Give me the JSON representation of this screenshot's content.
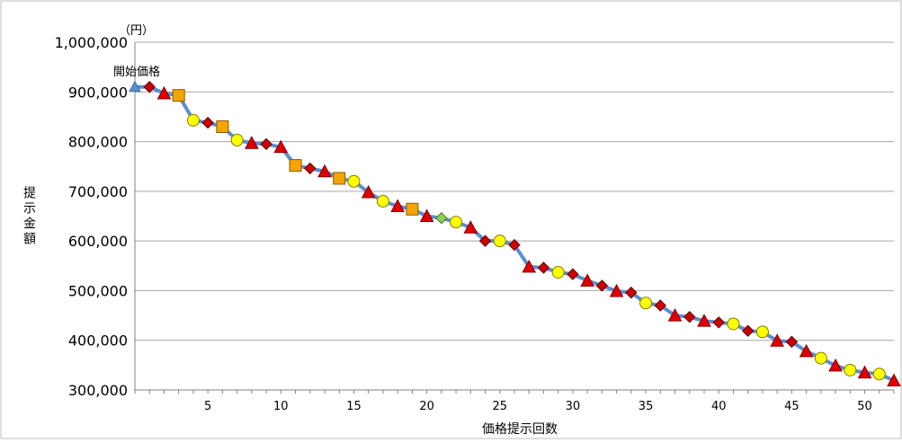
{
  "chart_data": {
    "type": "line",
    "title": "",
    "xlabel": "価格提示回数",
    "ylabel": "提示金額",
    "unit_label": "（円）",
    "start_label": "開始価格",
    "xlim": [
      0,
      52
    ],
    "ylim": [
      300000,
      1000000
    ],
    "x_ticks": [
      5,
      10,
      15,
      20,
      25,
      30,
      35,
      40,
      45,
      50
    ],
    "x_tick_labels": [
      "5",
      "10",
      "15",
      "20",
      "25",
      "30",
      "35",
      "40",
      "45",
      "50"
    ],
    "y_ticks": [
      300000,
      400000,
      500000,
      600000,
      700000,
      800000,
      900000,
      1000000
    ],
    "y_tick_labels": [
      "300,000",
      "400,000",
      "500,000",
      "600,000",
      "700,000",
      "800,000",
      "900,000",
      "1,000,000"
    ],
    "grid": true,
    "line_color": "#5b8fd0",
    "marker_styles": {
      "triangle": {
        "fill": "#e00000",
        "stroke": "#800000"
      },
      "diamond": {
        "fill": "#cc0000",
        "stroke": "#600000"
      },
      "square": {
        "fill": "#f5a500",
        "stroke": "#8a5a00"
      },
      "circle": {
        "fill": "#ffff00",
        "stroke": "#808000"
      },
      "diamond_green": {
        "fill": "#90d050",
        "stroke": "#4a7a20"
      }
    },
    "series": [
      {
        "x": [
          0,
          1,
          2,
          3,
          4,
          5,
          6,
          7,
          8,
          9,
          10,
          11,
          12,
          13,
          14,
          15,
          16,
          17,
          18,
          19,
          20,
          21,
          22,
          23,
          24,
          25,
          26,
          27,
          28,
          29,
          30,
          31,
          32,
          33,
          34,
          35,
          36,
          37,
          38,
          39,
          40,
          41,
          42,
          43,
          44,
          45,
          46,
          47,
          48,
          49,
          50,
          51,
          52
        ],
        "values": [
          910000,
          910000,
          897000,
          893000,
          843000,
          838000,
          830000,
          803000,
          797000,
          795000,
          789000,
          752000,
          746000,
          740000,
          726000,
          720000,
          698000,
          680000,
          670000,
          664000,
          650000,
          646000,
          638000,
          627000,
          600000,
          600000,
          592000,
          548000,
          546000,
          537000,
          533000,
          520000,
          510000,
          499000,
          496000,
          475000,
          470000,
          450000,
          447000,
          439000,
          436000,
          433000,
          419000,
          417000,
          399000,
          397000,
          378000,
          364000,
          349000,
          340000,
          335000,
          332000,
          319000
        ],
        "markers": [
          "triangle",
          "diamond",
          "triangle",
          "square",
          "circle",
          "diamond",
          "square",
          "circle",
          "triangle",
          "diamond",
          "triangle",
          "square",
          "diamond",
          "triangle",
          "square",
          "circle",
          "triangle",
          "circle",
          "triangle",
          "square",
          "triangle",
          "diamond_green",
          "circle",
          "triangle",
          "diamond",
          "circle",
          "diamond",
          "triangle",
          "diamond",
          "circle",
          "diamond",
          "triangle",
          "diamond",
          "triangle",
          "diamond",
          "circle",
          "diamond",
          "triangle",
          "diamond",
          "triangle",
          "diamond",
          "circle",
          "diamond",
          "circle",
          "triangle",
          "diamond",
          "triangle",
          "circle",
          "triangle",
          "circle",
          "triangle",
          "circle",
          "triangle"
        ]
      }
    ]
  }
}
